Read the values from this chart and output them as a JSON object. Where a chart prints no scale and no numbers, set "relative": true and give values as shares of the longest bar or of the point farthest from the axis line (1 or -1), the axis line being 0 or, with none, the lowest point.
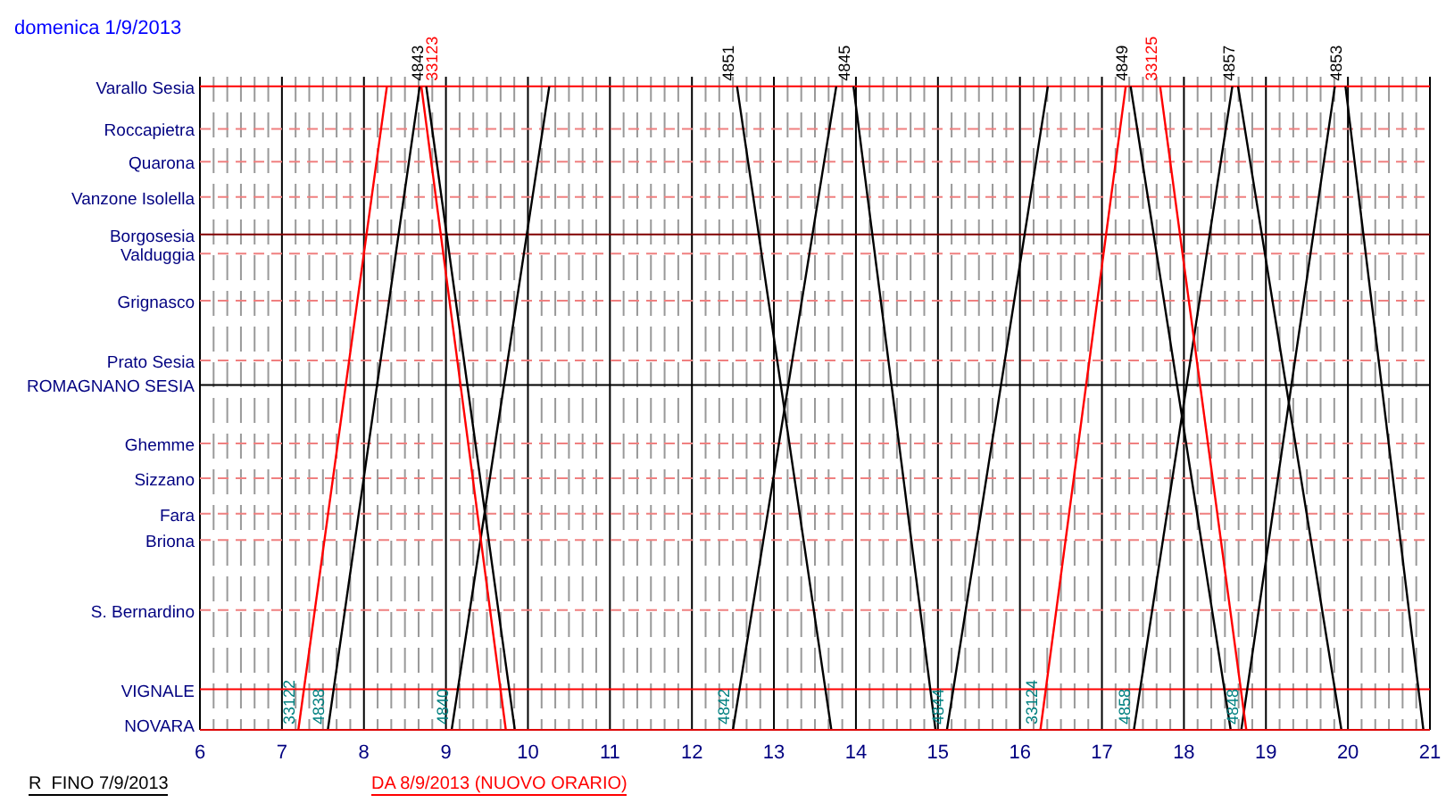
{
  "chart_data": {
    "type": "line",
    "title": "domenica 1/9/2013",
    "relative": true,
    "xlim": [
      6,
      21
    ],
    "xticks": [
      6,
      7,
      8,
      9,
      10,
      11,
      12,
      13,
      14,
      15,
      16,
      17,
      18,
      19,
      20,
      21
    ],
    "grid": "x",
    "marker": "none",
    "line_style": "solid",
    "ref_lines": [
      {
        "axis": "y",
        "value": 1,
        "label": "Varallo Sesia",
        "color": "#ff0000",
        "line_style": "solid"
      },
      {
        "axis": "y",
        "value": 0.934,
        "label": "Roccapietra",
        "color": "#f08080",
        "line_style": "dashed"
      },
      {
        "axis": "y",
        "value": 0.883,
        "label": "Quarona",
        "color": "#f08080",
        "line_style": "dashed"
      },
      {
        "axis": "y",
        "value": 0.828,
        "label": "Vanzone Isolella",
        "color": "#f08080",
        "line_style": "dashed"
      },
      {
        "axis": "y",
        "value": 0.77,
        "label": "Borgosesia",
        "color": "#800000",
        "line_style": "solid"
      },
      {
        "axis": "y",
        "value": 0.74,
        "label": "Valduggia",
        "color": "#f08080",
        "line_style": "dashed"
      },
      {
        "axis": "y",
        "value": 0.667,
        "label": "Grignasco",
        "color": "#f08080",
        "line_style": "dashed"
      },
      {
        "axis": "y",
        "value": 0.574,
        "label": "Prato Sesia",
        "color": "#f08080",
        "line_style": "dashed"
      },
      {
        "axis": "y",
        "value": 0.536,
        "label": "ROMAGNANO SESIA",
        "color": "#000000",
        "line_style": "solid"
      },
      {
        "axis": "y",
        "value": 0.445,
        "label": "Ghemme",
        "color": "#f08080",
        "line_style": "dashed"
      },
      {
        "axis": "y",
        "value": 0.391,
        "label": "Sizzano",
        "color": "#f08080",
        "line_style": "dashed"
      },
      {
        "axis": "y",
        "value": 0.336,
        "label": "Fara",
        "color": "#f08080",
        "line_style": "dashed"
      },
      {
        "axis": "y",
        "value": 0.295,
        "label": "Briona",
        "color": "#f08080",
        "line_style": "dashed"
      },
      {
        "axis": "y",
        "value": 0.186,
        "label": "S. Bernardino",
        "color": "#f08080",
        "line_style": "dashed"
      },
      {
        "axis": "y",
        "value": 0.063,
        "label": "VIGNALE",
        "color": "#ff0000",
        "line_style": "solid"
      }
    ],
    "annotations": [
      "R  FINO 7/9/2013",
      "DA 8/9/2013 (NUOVO ORARIO)",
      "NOVARA"
    ],
    "series": [
      {
        "name": "4838",
        "color": "#000000",
        "x": [
          7.56,
          8.68
        ],
        "values": [
          0,
          1
        ]
      },
      {
        "name": "4843",
        "color": "#000000",
        "x": [
          8.76,
          9.84
        ],
        "values": [
          1,
          0
        ]
      },
      {
        "name": "4840",
        "color": "#000000",
        "x": [
          9.07,
          10.26
        ],
        "values": [
          0,
          1
        ]
      },
      {
        "name": "4842",
        "color": "#000000",
        "x": [
          12.5,
          13.76
        ],
        "values": [
          0,
          1
        ]
      },
      {
        "name": "4851",
        "color": "#000000",
        "x": [
          12.55,
          13.7
        ],
        "values": [
          1,
          0
        ]
      },
      {
        "name": "4845",
        "color": "#000000",
        "x": [
          13.97,
          14.97
        ],
        "values": [
          1,
          0
        ]
      },
      {
        "name": "4844",
        "color": "#000000",
        "x": [
          15.11,
          16.34
        ],
        "values": [
          0,
          1
        ]
      },
      {
        "name": "4849",
        "color": "#000000",
        "x": [
          17.35,
          18.57
        ],
        "values": [
          1,
          0
        ]
      },
      {
        "name": "4858",
        "color": "#000000",
        "x": [
          17.39,
          18.59
        ],
        "values": [
          0,
          1
        ]
      },
      {
        "name": "4857",
        "color": "#000000",
        "x": [
          18.66,
          19.92
        ],
        "values": [
          1,
          0
        ]
      },
      {
        "name": "4848",
        "color": "#000000",
        "x": [
          18.7,
          19.84
        ],
        "values": [
          0,
          1
        ]
      },
      {
        "name": "4853",
        "color": "#000000",
        "x": [
          19.97,
          20.92
        ],
        "values": [
          1,
          0
        ]
      },
      {
        "name": "33122",
        "color": "#ff0000",
        "x": [
          7.2,
          8.28
        ],
        "values": [
          0,
          1
        ]
      },
      {
        "name": "33123",
        "color": "#ff0000",
        "x": [
          8.7,
          9.73
        ],
        "values": [
          1,
          0
        ]
      },
      {
        "name": "33124",
        "color": "#ff0000",
        "x": [
          16.25,
          17.29
        ],
        "values": [
          0,
          1
        ]
      },
      {
        "name": "33125",
        "color": "#ff0000",
        "x": [
          17.71,
          18.76
        ],
        "values": [
          1,
          0
        ]
      }
    ]
  }
}
